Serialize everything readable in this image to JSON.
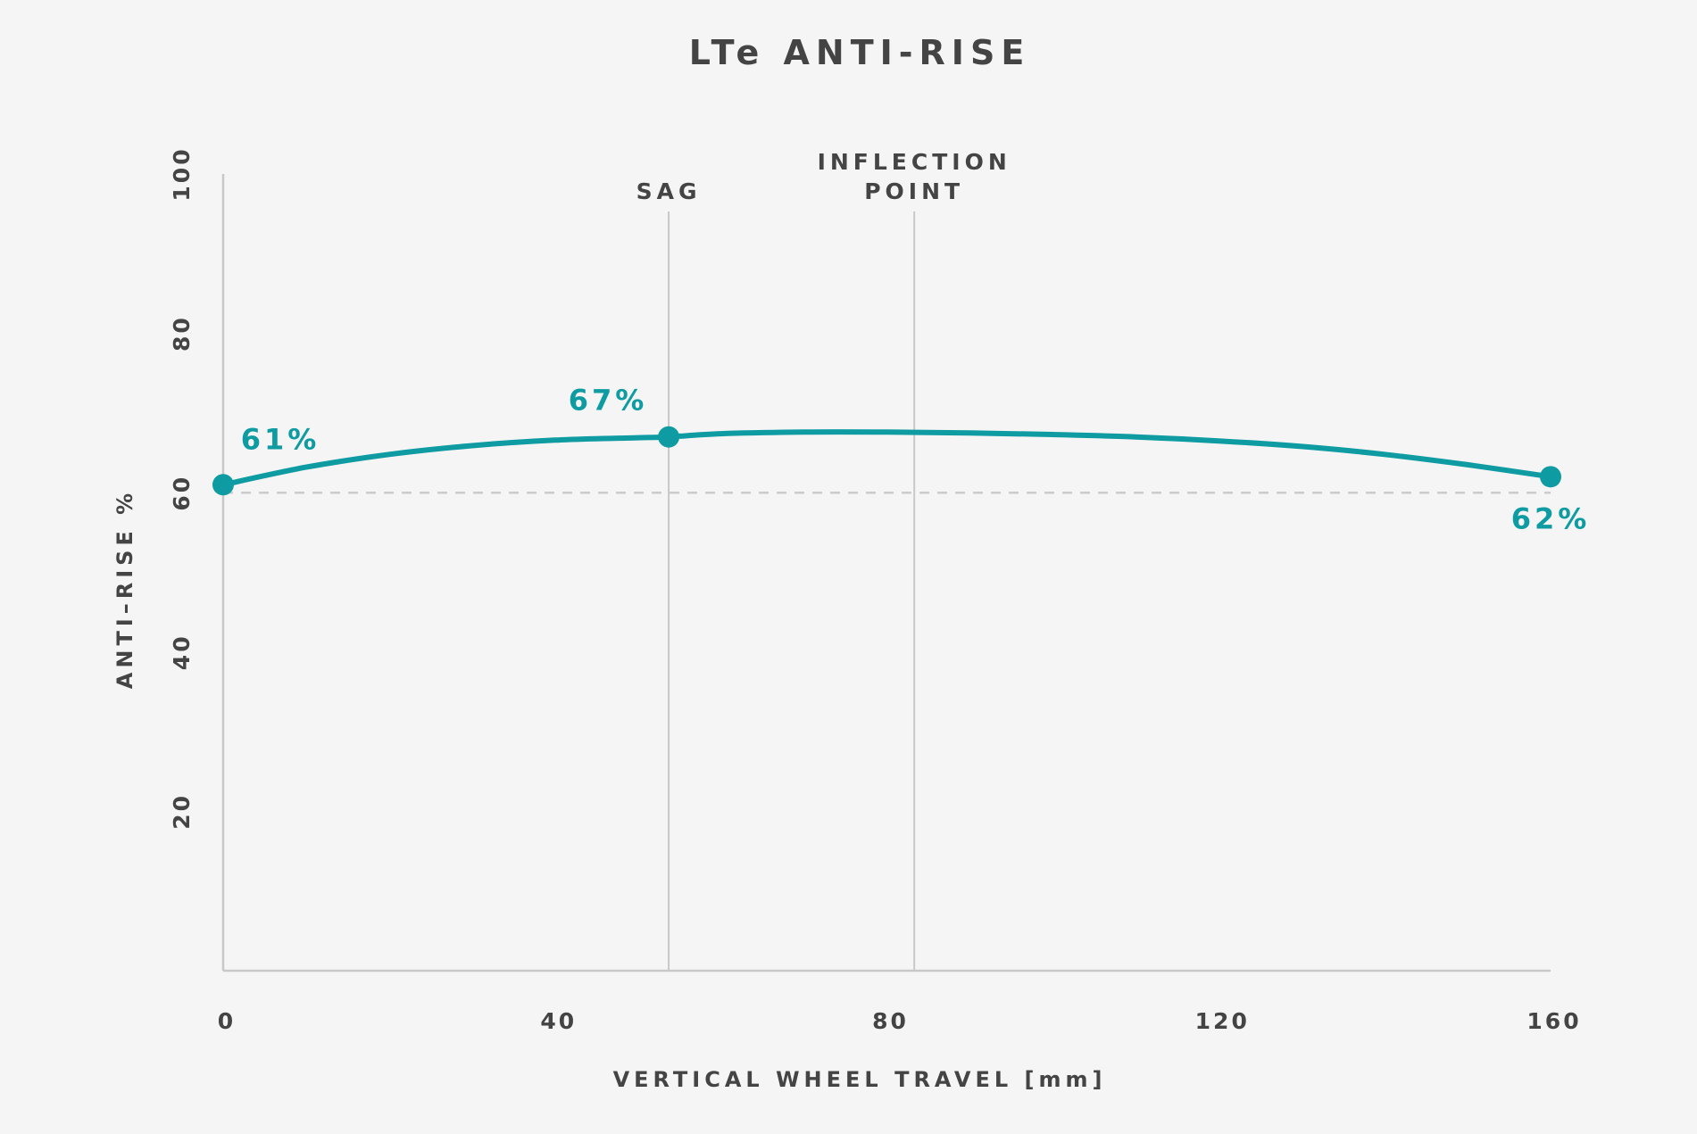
{
  "chart_data": {
    "type": "line",
    "title": "LTe ANTI-RISE",
    "xlabel": "VERTICAL WHEEL TRAVEL [mm]",
    "ylabel": "ANTI–RISE %",
    "xlim": [
      0,
      160
    ],
    "ylim": [
      0,
      100
    ],
    "x_ticks": [
      "0",
      "40",
      "80",
      "120",
      "160"
    ],
    "y_ticks": [
      "20",
      "40",
      "60",
      "80",
      "100"
    ],
    "grid": false,
    "series": [
      {
        "color": "#0e9ba2",
        "x": [
          0,
          10,
          20,
          30,
          40,
          50,
          53.7,
          60,
          70,
          80,
          90,
          100,
          110,
          120,
          130,
          140,
          150,
          160
        ],
        "y": [
          61,
          63.2,
          64.8,
          65.9,
          66.6,
          66.9,
          67,
          67.4,
          67.6,
          67.6,
          67.5,
          67.3,
          67,
          66.5,
          65.8,
          64.8,
          63.5,
          62
        ]
      }
    ],
    "highlighted_points": [
      {
        "x": 0,
        "y": 61,
        "label": "61%"
      },
      {
        "x": 53.7,
        "y": 67,
        "label": "67%"
      },
      {
        "x": 160,
        "y": 62,
        "label": "62%"
      }
    ],
    "reference_line": {
      "y": 60,
      "style": "dashed",
      "color": "#cccccc"
    },
    "vertical_markers": [
      {
        "x": 53.7,
        "label_lines": [
          "SAG"
        ]
      },
      {
        "x": 83.3,
        "label_lines": [
          "INFLECTION",
          "POINT"
        ]
      }
    ],
    "colors": {
      "series": "#0e9ba2",
      "text": "#444444",
      "axis": "#c8c8c8",
      "background": "#f5f5f5"
    }
  }
}
